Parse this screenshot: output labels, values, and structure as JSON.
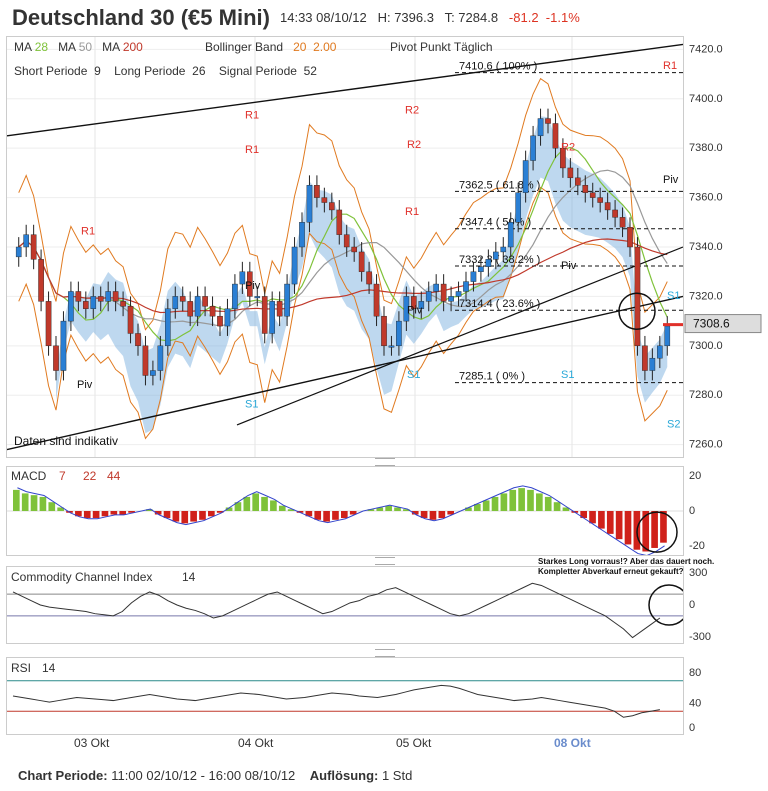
{
  "header": {
    "title": "Deutschland 30 (€5 Mini)",
    "time": "14:33 08/10/12",
    "high": "H: 7396.3",
    "low": "T: 7284.8",
    "change": "-81.2",
    "change_pct": "-1.1%"
  },
  "legend": {
    "ma_label": "MA",
    "ma1": "28",
    "ma2": "50",
    "ma3": "200",
    "bollinger_label": "Bollinger Band",
    "boll1": "20",
    "boll2": "2.00",
    "pivot_label": "Pivot Punkt Täglich",
    "short_label": "Short Periode",
    "short_val": "9",
    "long_label": "Long Periode",
    "long_val": "26",
    "signal_label": "Signal Periode",
    "signal_val": "52",
    "indicative": "Daten sind indikativ"
  },
  "colors": {
    "up": "#2a7fd4",
    "down": "#c0392b",
    "ma28": "#7fc23a",
    "ma50": "#999999",
    "ma200": "#c0392b",
    "pivot_r": "#e0302a",
    "pivot_s": "#29a8d8",
    "macd_up": "#7fc23a",
    "macd_down": "#d0211a"
  },
  "chart_data": [
    {
      "type": "candlestick",
      "name": "price",
      "ylim": [
        7255,
        7425
      ],
      "yticks": [
        "7260.0",
        "7280.0",
        "7300.0",
        "7320.0",
        "7340.0",
        "7360.0",
        "7380.0",
        "7400.0",
        "7420.0"
      ],
      "x_labels": [
        "03 Okt",
        "04 Okt",
        "05 Okt",
        "08 Okt"
      ],
      "current_price": "7308.6",
      "fib_levels": [
        {
          "label": "7410.6 ( 100% )",
          "value": 7410.6
        },
        {
          "label": "7362.5 ( 61.8% )",
          "value": 7362.5
        },
        {
          "label": "7347.4 ( 50% )",
          "value": 7347.4
        },
        {
          "label": "7332.3 ( 38.2% )",
          "value": 7332.3
        },
        {
          "label": "7314.4 ( 23.6% )",
          "value": 7314.4
        },
        {
          "label": "7285.1 ( 0% )",
          "value": 7285.1
        }
      ],
      "pivot_labels": [
        "R1",
        "R2",
        "R1",
        "R2",
        "R1",
        "R2",
        "R1",
        "R1",
        "Piv",
        "Piv",
        "Piv",
        "Piv",
        "Piv",
        "S1",
        "S1",
        "S1",
        "S1",
        "S2"
      ],
      "closes": [
        7340,
        7345,
        7335,
        7318,
        7300,
        7290,
        7310,
        7322,
        7318,
        7315,
        7320,
        7318,
        7322,
        7318,
        7316,
        7305,
        7300,
        7288,
        7290,
        7300,
        7315,
        7320,
        7318,
        7312,
        7320,
        7316,
        7312,
        7308,
        7315,
        7325,
        7330,
        7320,
        7320,
        7305,
        7318,
        7312,
        7325,
        7340,
        7350,
        7365,
        7360,
        7358,
        7355,
        7345,
        7340,
        7338,
        7330,
        7325,
        7312,
        7300,
        7300,
        7310,
        7320,
        7315,
        7318,
        7322,
        7325,
        7318,
        7320,
        7322,
        7326,
        7330,
        7332,
        7335,
        7338,
        7340,
        7350,
        7362,
        7375,
        7385,
        7392,
        7390,
        7380,
        7372,
        7368,
        7365,
        7362,
        7360,
        7358,
        7355,
        7352,
        7348,
        7340,
        7300,
        7290,
        7295,
        7300,
        7308
      ]
    },
    {
      "type": "bar",
      "name": "MACD",
      "label": "MACD",
      "p1": "7",
      "p2": "22",
      "p3": "44",
      "yticks": [
        "20",
        "0",
        "-20"
      ],
      "ylim": [
        -25,
        25
      ],
      "values": [
        12,
        10,
        9,
        8,
        5,
        2,
        -1,
        -3,
        -4,
        -4,
        -3,
        -2,
        -2,
        -1,
        0,
        1,
        -2,
        -4,
        -6,
        -7,
        -6,
        -5,
        -3,
        -1,
        2,
        5,
        8,
        10,
        8,
        6,
        3,
        1,
        -1,
        -3,
        -5,
        -6,
        -5,
        -4,
        -2,
        0,
        1,
        2,
        3,
        2,
        1,
        -2,
        -4,
        -5,
        -4,
        -2,
        0,
        2,
        4,
        6,
        8,
        10,
        12,
        13,
        12,
        10,
        8,
        5,
        2,
        -1,
        -4,
        -7,
        -10,
        -13,
        -16,
        -19,
        -22,
        -23,
        -21,
        -18
      ]
    },
    {
      "type": "line",
      "name": "Commodity Channel Index",
      "label": "Commodity Channel Index",
      "period": "14",
      "yticks": [
        "300",
        "0",
        "-300"
      ],
      "ylim": [
        -350,
        350
      ],
      "values": [
        120,
        80,
        40,
        0,
        -20,
        -30,
        -40,
        -50,
        -60,
        -80,
        -90,
        -100,
        -60,
        20,
        80,
        120,
        90,
        40,
        0,
        -30,
        -50,
        -80,
        -120,
        -100,
        -60,
        -20,
        20,
        60,
        100,
        120,
        80,
        40,
        0,
        -40,
        -80,
        -60,
        -20,
        20,
        40,
        80,
        100,
        140,
        160,
        120,
        80,
        40,
        0,
        -40,
        -80,
        -100,
        -80,
        -40,
        0,
        40,
        80,
        120,
        160,
        200,
        180,
        140,
        100,
        60,
        20,
        -20,
        -60,
        -100,
        -160,
        -220,
        -300,
        -240,
        -180,
        -120
      ]
    },
    {
      "type": "line",
      "name": "RSI",
      "label": "RSI",
      "period": "14",
      "yticks": [
        "80",
        "40",
        "0"
      ],
      "ylim": [
        0,
        100
      ],
      "values": [
        50,
        48,
        46,
        44,
        42,
        44,
        46,
        48,
        47,
        46,
        45,
        44,
        46,
        48,
        50,
        52,
        50,
        48,
        46,
        45,
        44,
        46,
        48,
        50,
        52,
        54,
        53,
        52,
        50,
        48,
        46,
        47,
        48,
        50,
        52,
        54,
        53,
        52,
        50,
        49,
        48,
        50,
        52,
        55,
        58,
        60,
        62,
        64,
        63,
        60,
        56,
        52,
        50,
        48,
        46,
        44,
        45,
        46,
        48,
        46,
        44,
        42,
        40,
        38,
        36,
        34,
        30,
        22,
        24,
        28,
        30,
        32
      ]
    }
  ],
  "annotation": {
    "line1": "Starkes Long vorraus!? Aber das dauert noch.",
    "line2": "Kompletter Abverkauf erneut gekauft?"
  },
  "footer": {
    "period_label": "Chart Periode:",
    "period_value": "11:00 02/10/12 - 16:00 08/10/12",
    "resolution_label": "Auflösung:",
    "resolution_value": "1 Std"
  }
}
